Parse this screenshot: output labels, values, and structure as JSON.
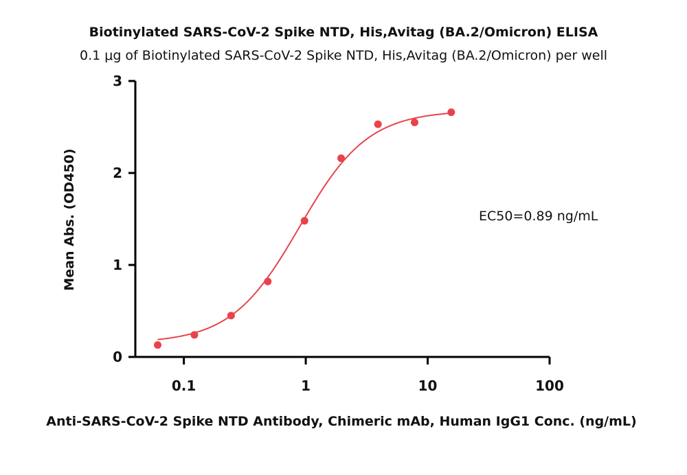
{
  "chart_data": {
    "type": "scatter",
    "title": "Biotinylated SARS-CoV-2 Spike NTD, His,Avitag (BA.2/Omicron) ELISA",
    "subtitle": "0.1 μg of Biotinylated SARS-CoV-2 Spike NTD, His,Avitag (BA.2/Omicron) per well",
    "xlabel": "Anti-SARS-CoV-2 Spike NTD Antibody, Chimeric mAb, Human IgG1 Conc. (ng/mL)",
    "ylabel": "Mean Abs. (OD450)",
    "xscale": "log",
    "xlim": [
      0.04,
      100
    ],
    "ylim": [
      0,
      3
    ],
    "xticks": [
      {
        "value": 0.1,
        "label": "0.1"
      },
      {
        "value": 1,
        "label": "1"
      },
      {
        "value": 10,
        "label": "10"
      },
      {
        "value": 100,
        "label": "100"
      }
    ],
    "yticks": [
      {
        "value": 0,
        "label": "0"
      },
      {
        "value": 1,
        "label": "1"
      },
      {
        "value": 2,
        "label": "2"
      },
      {
        "value": 3,
        "label": "3"
      }
    ],
    "series": [
      {
        "color": "#e8434a",
        "x": [
          0.061,
          0.122,
          0.244,
          0.488,
          0.977,
          1.95,
          3.91,
          7.81,
          15.6
        ],
        "y": [
          0.13,
          0.24,
          0.45,
          0.82,
          1.48,
          2.16,
          2.53,
          2.55,
          2.66
        ]
      }
    ],
    "fit": {
      "model": "4PL",
      "bottom": 0.15,
      "top": 2.68,
      "ec50": 0.89,
      "hill": 1.55,
      "color": "#e8434a"
    },
    "annotations": [
      {
        "text": "EC50=0.89 ng/mL"
      }
    ],
    "grid": false,
    "legend": "none"
  }
}
